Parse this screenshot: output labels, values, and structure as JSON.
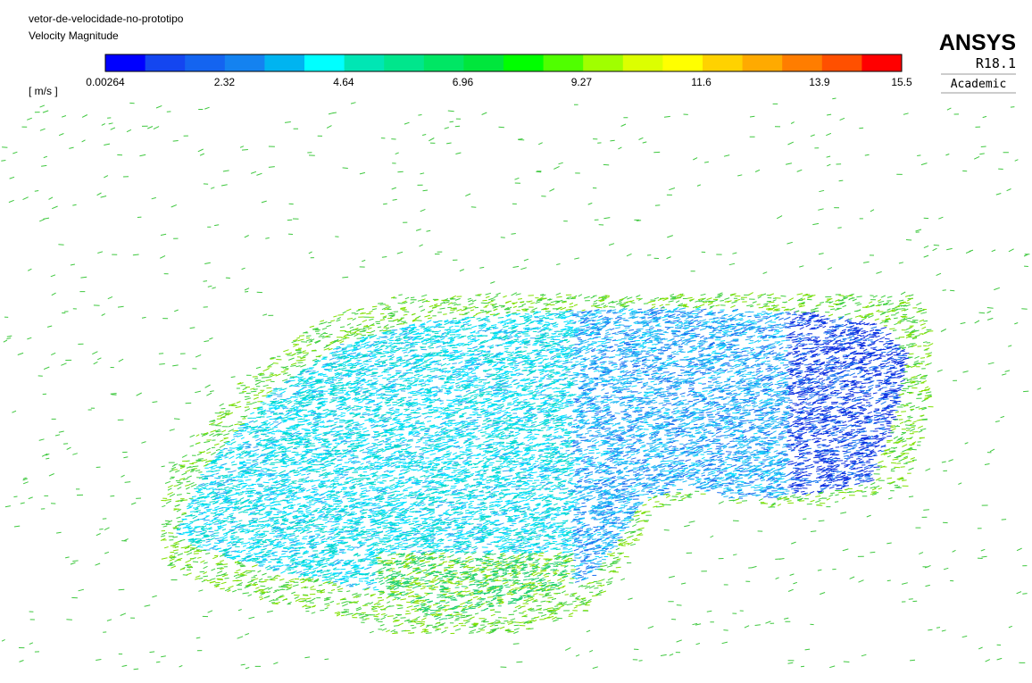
{
  "header": {
    "title": "vetor-de-velocidade-no-prototipo",
    "variable": "Velocity Magnitude"
  },
  "legend": {
    "unit": "[ m/s ]",
    "ticks": [
      0.00264,
      2.32,
      4.64,
      6.96,
      9.27,
      11.6,
      13.9,
      15.5
    ],
    "colors": [
      "#0000ff",
      "#1446f0",
      "#1464f0",
      "#1482f0",
      "#00b4f0",
      "#00ffff",
      "#00e6b4",
      "#00e68c",
      "#00e664",
      "#00e63c",
      "#00ff00",
      "#50ff00",
      "#a0ff00",
      "#dcff00",
      "#ffff00",
      "#ffd200",
      "#ffaa00",
      "#ff7d00",
      "#ff5000",
      "#ff0000"
    ]
  },
  "logo": {
    "brand": "ANSYS",
    "version": "R18.1",
    "edition": "Academic"
  }
}
